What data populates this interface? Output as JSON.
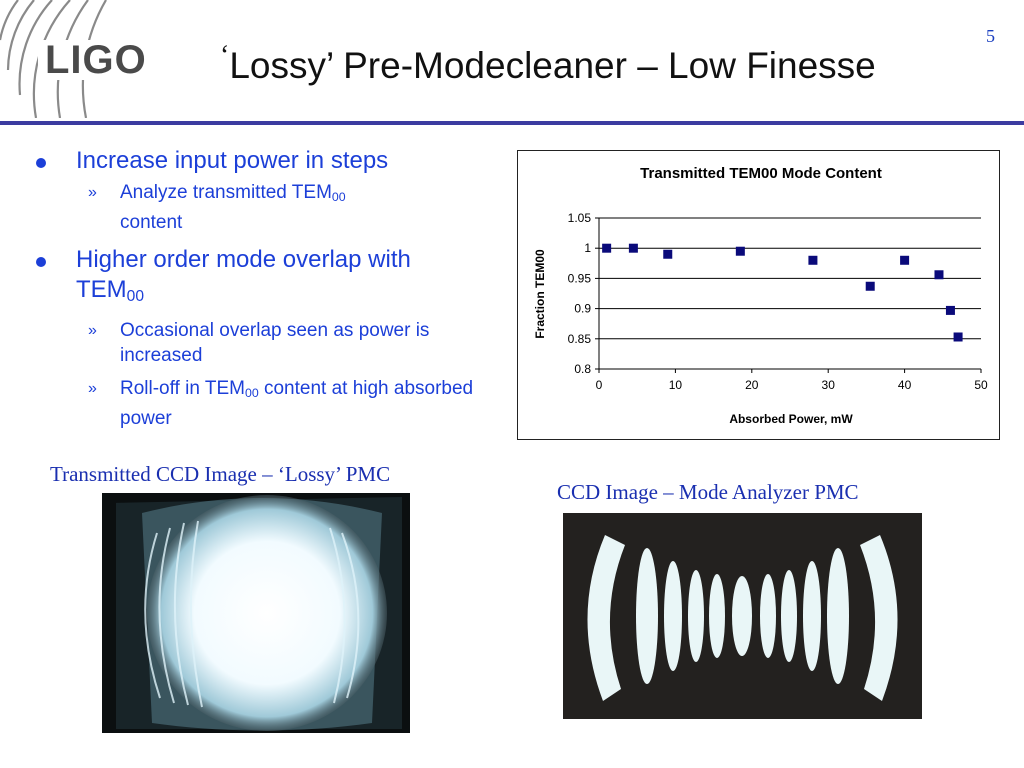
{
  "header": {
    "logo_text": "LIGO",
    "title_quote": "‘",
    "title_text": "Lossy’ Pre-Modecleaner – Low Finesse",
    "page_number": "5"
  },
  "bullets": [
    {
      "text": "Increase input power in steps",
      "subs": [
        {
          "pre": "Analyze transmitted TEM",
          "sub": "00",
          "post": " content"
        }
      ]
    },
    {
      "pre": "Higher order mode overlap with TEM",
      "sub": "00",
      "subs": [
        {
          "pre": "Occasional overlap seen as power is increased",
          "sub": "",
          "post": ""
        },
        {
          "pre": "Roll-off in TEM",
          "sub": "00",
          "post": " content at high absorbed power"
        }
      ]
    }
  ],
  "sub_marker": "»",
  "chart_data": {
    "type": "scatter",
    "title": "Transmitted TEM00 Mode Content",
    "xlabel": "Absorbed Power, mW",
    "ylabel": "Fraction TEM00",
    "xlim": [
      0,
      50
    ],
    "ylim": [
      0.8,
      1.05
    ],
    "x_ticks": [
      "0",
      "10",
      "20",
      "30",
      "40",
      "50"
    ],
    "y_ticks": [
      "0.8",
      "0.85",
      "0.9",
      "0.95",
      "1",
      "1.05"
    ],
    "grid": "horizontal",
    "marker_color": "#0a0a7a",
    "series": [
      {
        "x": [
          1,
          4.5,
          9,
          18.5,
          28,
          35.5,
          40,
          44.5,
          46,
          47
        ],
        "y": [
          1.0,
          1.0,
          0.99,
          0.995,
          0.98,
          0.937,
          0.98,
          0.956,
          0.897,
          0.853
        ]
      }
    ]
  },
  "captions": {
    "left": "Transmitted CCD Image – ‘Lossy’ PMC",
    "right": "CCD Image – Mode Analyzer PMC"
  }
}
